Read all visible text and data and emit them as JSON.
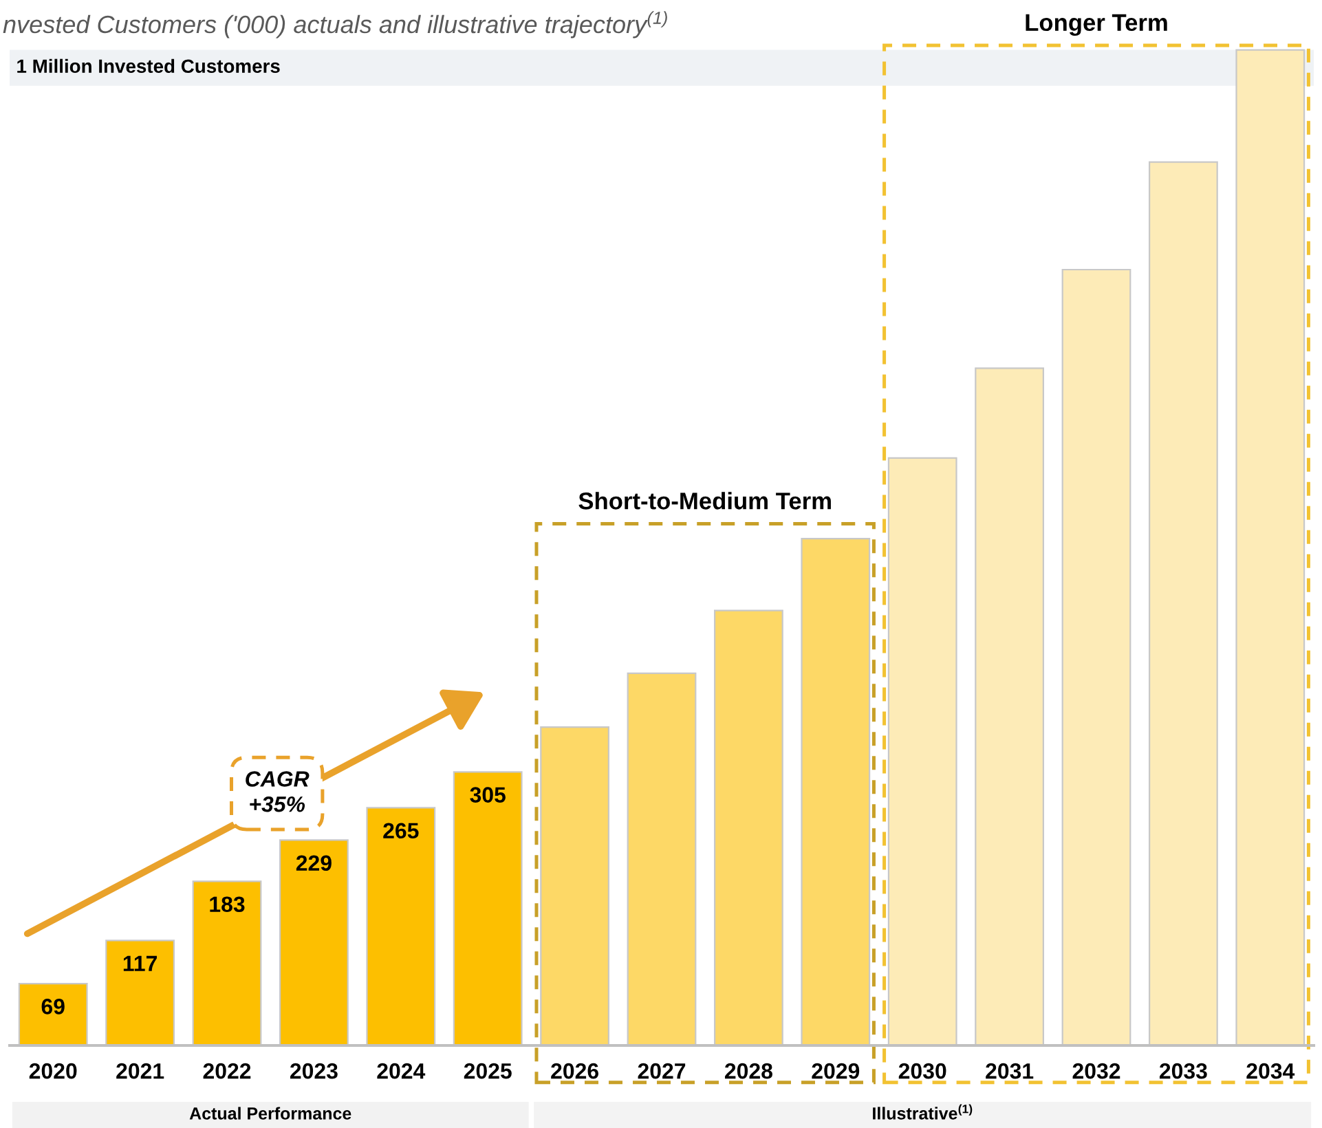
{
  "chart_data": {
    "type": "bar",
    "title": "nvested Customers ('000) actuals and illustrative trajectory$^{(1)}$",
    "categories": [
      "2020",
      "2021",
      "2022",
      "2023",
      "2024",
      "2025",
      "2026",
      "2027",
      "2028",
      "2029",
      "2030",
      "2031",
      "2032",
      "2033",
      "2034"
    ],
    "values": [
      69,
      117,
      183,
      229,
      265,
      305,
      355,
      415,
      485,
      565,
      655,
      755,
      865,
      985,
      1110
    ],
    "colors": [
      "#fdbf00",
      "#fdbf00",
      "#fdbf00",
      "#fdbf00",
      "#fdbf00",
      "#fdbf00",
      "#fdd866",
      "#fdd866",
      "#fdd866",
      "#fdd866",
      "#fdebb7",
      "#fdebb7",
      "#fdebb7",
      "#fdebb7",
      "#fdebb7"
    ],
    "value_labels": [
      "69",
      "117",
      "183",
      "229",
      "265",
      "305",
      null,
      null,
      null,
      null,
      null,
      null,
      null,
      null,
      null
    ],
    "ylim": [
      0,
      1115
    ],
    "tick_labels": "x",
    "bands": [
      {
        "axis": "y",
        "from": 1070,
        "to": 1110,
        "label": "1 Million Invested Customers",
        "color": "#eff2f5"
      }
    ],
    "annotations": [
      "CAGR\n+35%",
      "Short-to-Medium Term",
      "Longer Term",
      "Actual Performance",
      "Illustrative$^{(1)}$"
    ]
  }
}
